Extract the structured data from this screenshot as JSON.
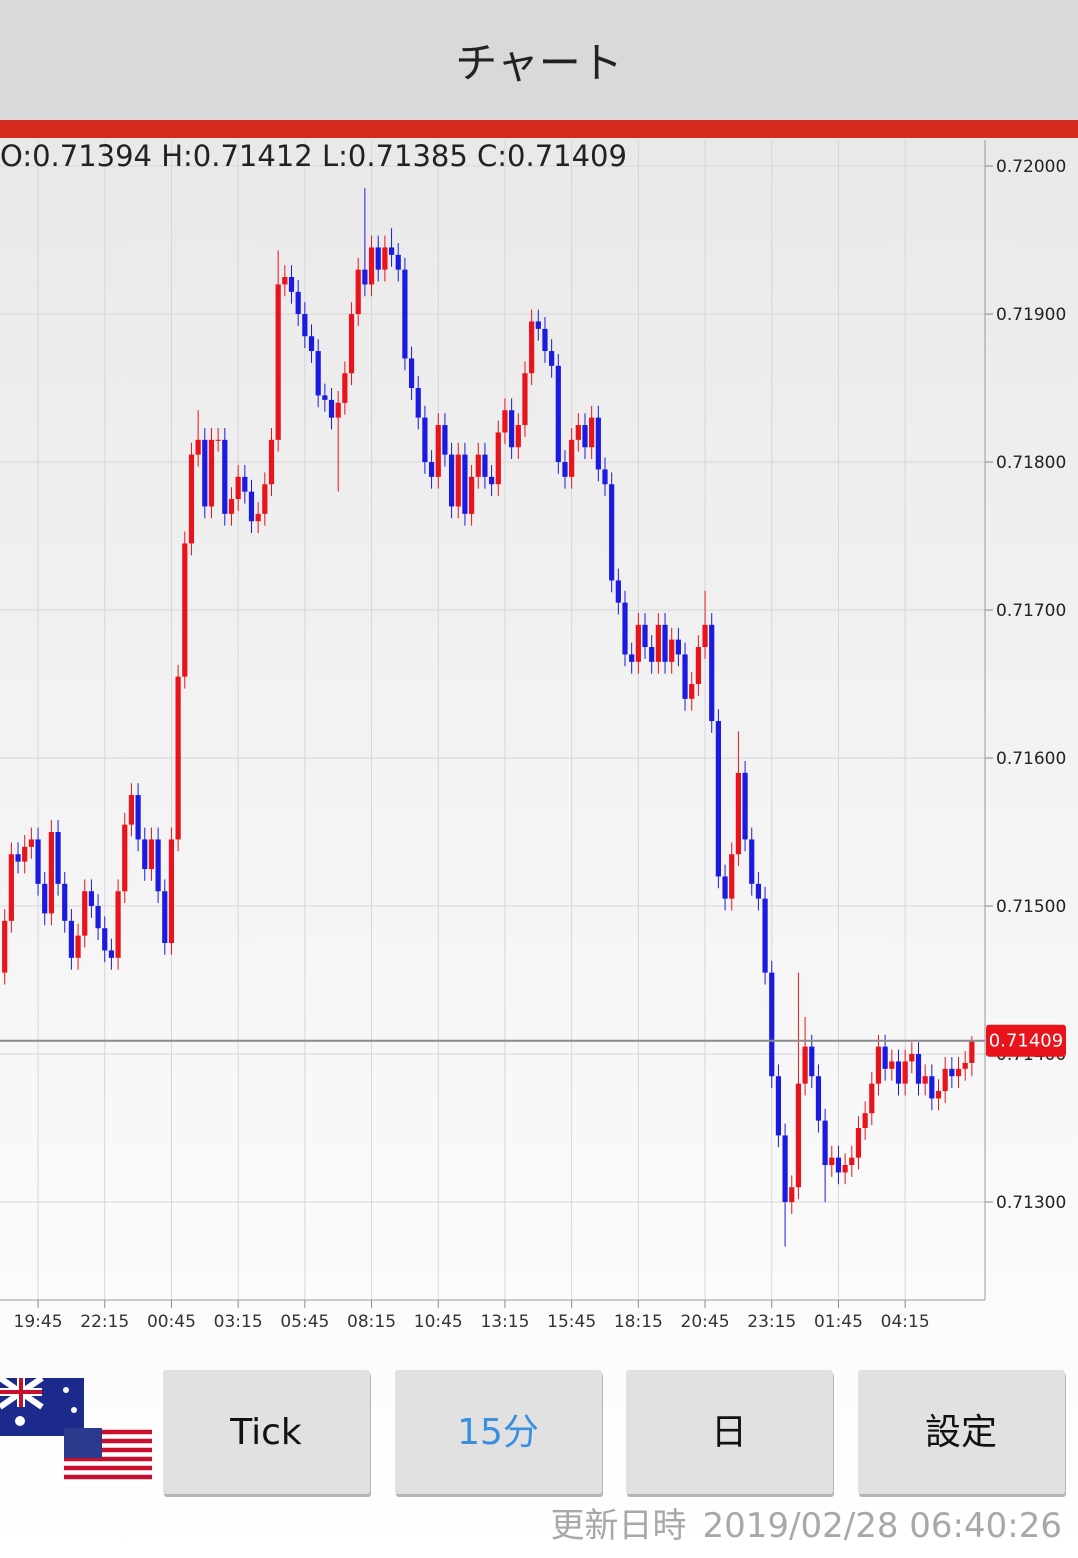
{
  "header": {
    "title": "チャート"
  },
  "chart_data": {
    "type": "candlestick",
    "ohlc_header": "O:0.71394 H:0.71412 L:0.71385 C:0.71409",
    "categories": [
      null,
      null,
      null,
      null,
      null,
      "19:45",
      null,
      null,
      null,
      null,
      null,
      null,
      null,
      null,
      null,
      "22:15",
      null,
      null,
      null,
      null,
      null,
      null,
      null,
      null,
      null,
      "00:45",
      null,
      null,
      null,
      null,
      null,
      null,
      null,
      null,
      null,
      "03:15",
      null,
      null,
      null,
      null,
      null,
      null,
      null,
      null,
      null,
      "05:45",
      null,
      null,
      null,
      null,
      null,
      null,
      null,
      null,
      null,
      "08:15",
      null,
      null,
      null,
      null,
      null,
      null,
      null,
      null,
      null,
      "10:45",
      null,
      null,
      null,
      null,
      null,
      null,
      null,
      null,
      null,
      "13:15",
      null,
      null,
      null,
      null,
      null,
      null,
      null,
      null,
      null,
      "15:45",
      null,
      null,
      null,
      null,
      null,
      null,
      null,
      null,
      null,
      "18:15",
      null,
      null,
      null,
      null,
      null,
      null,
      null,
      null,
      null,
      "20:45",
      null,
      null,
      null,
      null,
      null,
      null,
      null,
      null,
      null,
      "23:15",
      null,
      null,
      null,
      null,
      null,
      null,
      null,
      null,
      null,
      "01:45",
      null,
      null,
      null,
      null,
      null,
      null,
      null,
      null,
      null,
      "04:15",
      null,
      null,
      null,
      null,
      null,
      null,
      null,
      null,
      null,
      null
    ],
    "open": [
      0.71455,
      0.7149,
      0.71535,
      0.7153,
      0.7154,
      0.71545,
      0.71515,
      0.71495,
      0.7155,
      0.71515,
      0.7149,
      0.71465,
      0.7148,
      0.7151,
      0.715,
      0.71485,
      0.7147,
      0.71465,
      0.7151,
      0.71555,
      0.71575,
      0.71545,
      0.71525,
      0.71545,
      0.7151,
      0.71475,
      0.71545,
      0.71655,
      0.71745,
      0.71805,
      0.71815,
      0.7177,
      0.71815,
      0.71815,
      0.71765,
      0.71775,
      0.7179,
      0.7178,
      0.7176,
      0.71765,
      0.71785,
      0.71815,
      0.7192,
      0.71925,
      0.71915,
      0.719,
      0.71885,
      0.71875,
      0.71845,
      0.71842,
      0.7183,
      0.7184,
      0.7186,
      0.719,
      0.7193,
      0.7192,
      0.71945,
      0.7193,
      0.71945,
      0.7194,
      0.7193,
      0.7187,
      0.7185,
      0.7183,
      0.718,
      0.7179,
      0.71825,
      0.71805,
      0.7177,
      0.71805,
      0.71765,
      0.7179,
      0.71805,
      0.7179,
      0.71785,
      0.7182,
      0.71835,
      0.7181,
      0.71825,
      0.7186,
      0.71895,
      0.7189,
      0.71875,
      0.71865,
      0.718,
      0.7179,
      0.71815,
      0.71825,
      0.7181,
      0.7183,
      0.71795,
      0.71785,
      0.7172,
      0.71705,
      0.7167,
      0.71665,
      0.7169,
      0.71675,
      0.71665,
      0.7169,
      0.71665,
      0.7168,
      0.7167,
      0.7164,
      0.7165,
      0.71675,
      0.7169,
      0.71625,
      0.7152,
      0.71505,
      0.71535,
      0.7159,
      0.71545,
      0.71515,
      0.71505,
      0.71455,
      0.71385,
      0.71345,
      0.713,
      0.7131,
      0.7138,
      0.71405,
      0.71385,
      0.71355,
      0.71325,
      0.7133,
      0.7132,
      0.71325,
      0.7133,
      0.7135,
      0.7136,
      0.7138,
      0.71405,
      0.7139,
      0.71395,
      0.7138,
      0.71395,
      0.714,
      0.7138,
      0.71385,
      0.7137,
      0.71375,
      0.7139,
      0.71385,
      0.7139,
      0.71394
    ],
    "high": [
      0.71498,
      0.71543,
      0.71543,
      0.71548,
      0.71553,
      0.71553,
      0.71523,
      0.71558,
      0.71558,
      0.71523,
      0.71498,
      0.71488,
      0.71518,
      0.71518,
      0.71508,
      0.71493,
      0.71478,
      0.71518,
      0.71563,
      0.71583,
      0.71583,
      0.71553,
      0.71553,
      0.71553,
      0.71518,
      0.71553,
      0.71663,
      0.71753,
      0.71813,
      0.71835,
      0.71823,
      0.71823,
      0.71823,
      0.71823,
      0.71783,
      0.71798,
      0.71798,
      0.71788,
      0.71773,
      0.71793,
      0.71823,
      0.71943,
      0.71933,
      0.71933,
      0.71923,
      0.71908,
      0.71893,
      0.71883,
      0.71853,
      0.7185,
      0.71848,
      0.71868,
      0.71908,
      0.71938,
      0.71985,
      0.71953,
      0.71953,
      0.71953,
      0.71958,
      0.71948,
      0.71938,
      0.71878,
      0.71858,
      0.71838,
      0.71808,
      0.71833,
      0.71833,
      0.71813,
      0.71813,
      0.71813,
      0.71798,
      0.71813,
      0.71813,
      0.71798,
      0.71828,
      0.71843,
      0.71843,
      0.71833,
      0.71868,
      0.71903,
      0.71903,
      0.71898,
      0.71883,
      0.71873,
      0.71808,
      0.71823,
      0.71833,
      0.71833,
      0.71838,
      0.71838,
      0.71803,
      0.71793,
      0.71728,
      0.71713,
      0.71678,
      0.71698,
      0.71698,
      0.71683,
      0.71698,
      0.71698,
      0.71688,
      0.71688,
      0.71678,
      0.71658,
      0.71683,
      0.71713,
      0.71698,
      0.71633,
      0.71528,
      0.71543,
      0.71618,
      0.71598,
      0.71553,
      0.71523,
      0.71513,
      0.71463,
      0.71393,
      0.71353,
      0.71318,
      0.71455,
      0.71425,
      0.71413,
      0.71393,
      0.71363,
      0.71338,
      0.71338,
      0.71333,
      0.71338,
      0.71358,
      0.71368,
      0.71388,
      0.71413,
      0.71413,
      0.71403,
      0.71403,
      0.71403,
      0.71408,
      0.71408,
      0.71393,
      0.71393,
      0.71383,
      0.71398,
      0.71398,
      0.71398,
      0.71402,
      0.71412
    ],
    "low": [
      0.71447,
      0.71482,
      0.71522,
      0.71522,
      0.71532,
      0.71507,
      0.71487,
      0.71487,
      0.71507,
      0.71482,
      0.71457,
      0.71457,
      0.71472,
      0.71492,
      0.71477,
      0.71462,
      0.71457,
      0.71457,
      0.71502,
      0.71547,
      0.71537,
      0.71517,
      0.71517,
      0.71502,
      0.71467,
      0.71467,
      0.71537,
      0.71647,
      0.71737,
      0.71797,
      0.71762,
      0.71762,
      0.71807,
      0.71757,
      0.71757,
      0.71767,
      0.71772,
      0.71752,
      0.71752,
      0.71757,
      0.71777,
      0.71807,
      0.71912,
      0.71907,
      0.71892,
      0.71877,
      0.71867,
      0.71837,
      0.71834,
      0.71822,
      0.7178,
      0.71832,
      0.71852,
      0.71892,
      0.71912,
      0.71912,
      0.71922,
      0.71922,
      0.71932,
      0.71922,
      0.71862,
      0.71842,
      0.71822,
      0.71792,
      0.71782,
      0.71782,
      0.71797,
      0.71762,
      0.71762,
      0.71757,
      0.71757,
      0.71782,
      0.71782,
      0.71777,
      0.71777,
      0.71812,
      0.71802,
      0.71802,
      0.71817,
      0.71852,
      0.71882,
      0.71867,
      0.71857,
      0.71792,
      0.71782,
      0.71782,
      0.71807,
      0.71802,
      0.71802,
      0.71787,
      0.71777,
      0.71712,
      0.71697,
      0.71662,
      0.71657,
      0.71657,
      0.71667,
      0.71657,
      0.71657,
      0.71657,
      0.71657,
      0.71662,
      0.71632,
      0.71632,
      0.71642,
      0.71667,
      0.71617,
      0.71512,
      0.71497,
      0.71497,
      0.71527,
      0.71537,
      0.71507,
      0.71497,
      0.71447,
      0.71377,
      0.71337,
      0.7127,
      0.71292,
      0.71302,
      0.71372,
      0.71377,
      0.71347,
      0.713,
      0.71317,
      0.71312,
      0.71312,
      0.71317,
      0.71322,
      0.71342,
      0.71352,
      0.71372,
      0.71382,
      0.71382,
      0.71372,
      0.71372,
      0.71387,
      0.71372,
      0.71372,
      0.71362,
      0.71362,
      0.71367,
      0.71377,
      0.71377,
      0.71382,
      0.71385
    ],
    "close": [
      0.7149,
      0.71535,
      0.7153,
      0.7154,
      0.71545,
      0.71515,
      0.71495,
      0.7155,
      0.71515,
      0.7149,
      0.71465,
      0.7148,
      0.7151,
      0.715,
      0.71485,
      0.7147,
      0.71465,
      0.7151,
      0.71555,
      0.71575,
      0.71545,
      0.71525,
      0.71545,
      0.7151,
      0.71475,
      0.71545,
      0.71655,
      0.71745,
      0.71805,
      0.71815,
      0.7177,
      0.71815,
      0.71815,
      0.71765,
      0.71775,
      0.7179,
      0.7178,
      0.7176,
      0.71765,
      0.71785,
      0.71815,
      0.7192,
      0.71925,
      0.71915,
      0.719,
      0.71885,
      0.71875,
      0.71845,
      0.71842,
      0.7183,
      0.7184,
      0.7186,
      0.719,
      0.7193,
      0.7192,
      0.71945,
      0.7193,
      0.71945,
      0.7194,
      0.7193,
      0.7187,
      0.7185,
      0.7183,
      0.718,
      0.7179,
      0.71825,
      0.71805,
      0.7177,
      0.71805,
      0.71765,
      0.7179,
      0.71805,
      0.7179,
      0.71785,
      0.7182,
      0.71835,
      0.7181,
      0.71825,
      0.7186,
      0.71895,
      0.7189,
      0.71875,
      0.71865,
      0.718,
      0.7179,
      0.71815,
      0.71825,
      0.7181,
      0.7183,
      0.71795,
      0.71785,
      0.7172,
      0.71705,
      0.7167,
      0.71665,
      0.7169,
      0.71675,
      0.71665,
      0.7169,
      0.71665,
      0.7168,
      0.7167,
      0.7164,
      0.7165,
      0.71675,
      0.7169,
      0.71625,
      0.7152,
      0.71505,
      0.71535,
      0.7159,
      0.71545,
      0.71515,
      0.71505,
      0.71455,
      0.71385,
      0.71345,
      0.713,
      0.7131,
      0.7138,
      0.71405,
      0.71385,
      0.71355,
      0.71325,
      0.7133,
      0.7132,
      0.71325,
      0.7133,
      0.7135,
      0.7136,
      0.7138,
      0.71405,
      0.7139,
      0.71395,
      0.7138,
      0.71395,
      0.714,
      0.7138,
      0.71385,
      0.7137,
      0.71375,
      0.7139,
      0.71385,
      0.7139,
      0.71394,
      0.71409
    ],
    "up_color": "#e8131b",
    "down_color": "#1a1ae0",
    "ylim": [
      0.712338,
      0.720176
    ],
    "yticks": [
      {
        "value": 0.72,
        "label": "0.72000"
      },
      {
        "value": 0.719,
        "label": "0.71900"
      },
      {
        "value": 0.718,
        "label": "0.71800"
      },
      {
        "value": 0.717,
        "label": "0.71700"
      },
      {
        "value": 0.716,
        "label": "0.71600"
      },
      {
        "value": 0.715,
        "label": "0.71500"
      },
      {
        "value": 0.714,
        "label": "0.71400"
      },
      {
        "value": 0.713,
        "label": "0.71300"
      }
    ],
    "last_price": 0.71409,
    "grid": true
  },
  "buttons": [
    "Tick",
    "15分",
    "日",
    "設定"
  ],
  "selected_button": 1,
  "footer": {
    "updated_label": "更新日時",
    "updated_at": "2019/02/28 06:40:26"
  }
}
